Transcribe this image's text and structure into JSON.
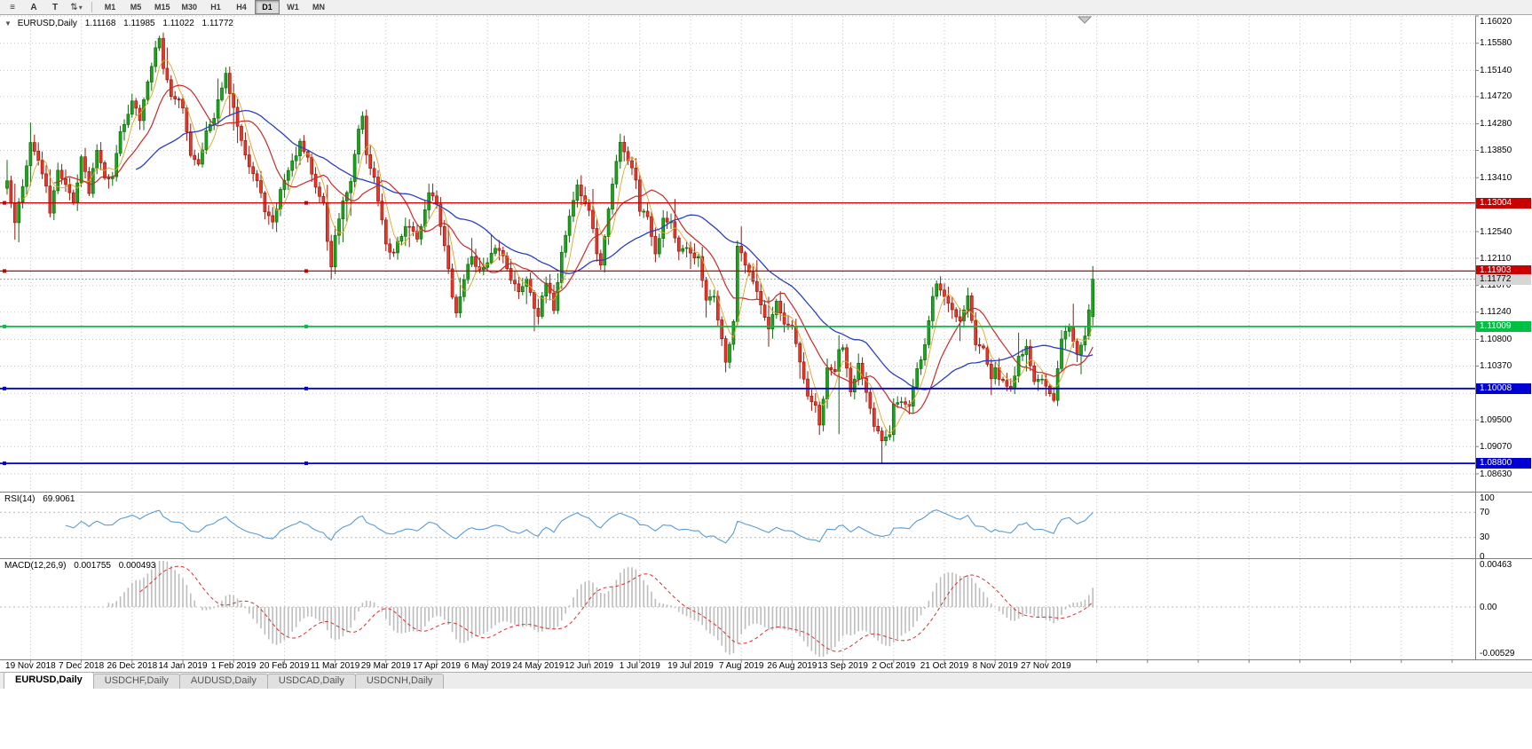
{
  "toolbar": {
    "glyphs": {
      "menu": "≡",
      "text_a": "A",
      "text_t": "T",
      "arrows": "⇅",
      "caret": "▾"
    },
    "timeframes": [
      "M1",
      "M5",
      "M15",
      "M30",
      "H1",
      "H4",
      "D1",
      "W1",
      "MN"
    ],
    "active_timeframe": "D1"
  },
  "chart": {
    "collapse_glyph": "▼",
    "title": "EURUSD,Daily",
    "open": "1.11168",
    "high": "1.11985",
    "low": "1.11022",
    "close": "1.11772",
    "price_axis_labels": [
      "1.16020",
      "1.15580",
      "1.15140",
      "1.14720",
      "1.14280",
      "1.13850",
      "1.13410",
      "1.12540",
      "1.12110",
      "1.11670",
      "1.11240",
      "1.10800",
      "1.10370",
      "1.09500",
      "1.09070",
      "1.08630"
    ],
    "levels": [
      {
        "price": "1.13004",
        "color": "#c80000",
        "width": 1.2
      },
      {
        "price": "1.11903",
        "color": "#c80000",
        "width": 1.2
      },
      {
        "price": "1.11009",
        "color": "#00c044",
        "width": 1.8
      },
      {
        "price": "1.10008",
        "color": "#0000d2",
        "width": 1.8
      },
      {
        "price": "1.08800",
        "color": "#0000d2",
        "width": 1.8
      }
    ],
    "current_price": {
      "price": "1.11772",
      "bg": "#d6d6d6",
      "fg": "#000000"
    },
    "colors": {
      "up": "#1ca51c",
      "up_border": "#0b6e0b",
      "down": "#e6392b",
      "down_border": "#9a170c",
      "ma_fast": "#cc2929",
      "ma_slow": "#2b3fc4",
      "ma_faster": "#e0a428",
      "rsi": "#5a9bd4",
      "macd_hist": "#bdbdbd",
      "macd_signal": "#d63030",
      "grid": "#c6c6c6",
      "level_red": "#c80000",
      "level_green": "#00c044",
      "level_blue": "#0000d2"
    }
  },
  "rsi": {
    "label": "RSI(14)",
    "value": "69.9061",
    "axis_labels": [
      "100",
      "70",
      "30",
      "0"
    ]
  },
  "macd": {
    "label": "MACD(12,26,9)",
    "value_main": "0.001755",
    "value_signal": "0.000493",
    "axis_labels": [
      "0.00463",
      "0.00",
      "-0.00529"
    ]
  },
  "date_axis": [
    "19 Nov 2018",
    "7 Dec 2018",
    "26 Dec 2018",
    "14 Jan 2019",
    "1 Feb 2019",
    "20 Feb 2019",
    "11 Mar 2019",
    "29 Mar 2019",
    "17 Apr 2019",
    "6 May 2019",
    "24 May 2019",
    "12 Jun 2019",
    "1 Jul 2019",
    "19 Jul 2019",
    "7 Aug 2019",
    "26 Aug 2019",
    "13 Sep 2019",
    "2 Oct 2019",
    "21 Oct 2019",
    "8 Nov 2019",
    "27 Nov 2019"
  ],
  "tabs": {
    "items": [
      "EURUSD,Daily",
      "USDCHF,Daily",
      "AUDUSD,Daily",
      "USDCAD,Daily",
      "USDCNH,Daily"
    ],
    "active": 0
  },
  "chart_data": {
    "type": "candlestick",
    "symbol": "EURUSD",
    "period": "Daily",
    "title": "EURUSD,Daily 1.11168 1.11985 1.11022 1.11772",
    "y_axis": {
      "min": 1.0863,
      "max": 1.1602
    },
    "price_grid": [
      1.1602,
      1.1558,
      1.1514,
      1.1472,
      1.1428,
      1.1385,
      1.1341,
      1.1298,
      1.1254,
      1.1211,
      1.1167,
      1.1124,
      1.108,
      1.1037,
      1.0993,
      1.095,
      1.0907,
      1.0863
    ],
    "x_tick_labels": [
      "19 Nov 2018",
      "7 Dec 2018",
      "26 Dec 2018",
      "14 Jan 2019",
      "1 Feb 2019",
      "20 Feb 2019",
      "11 Mar 2019",
      "29 Mar 2019",
      "17 Apr 2019",
      "6 May 2019",
      "24 May 2019",
      "12 Jun 2019",
      "1 Jul 2019",
      "19 Jul 2019",
      "7 Aug 2019",
      "26 Aug 2019",
      "13 Sep 2019",
      "2 Oct 2019",
      "21 Oct 2019",
      "8 Nov 2019",
      "27 Nov 2019"
    ],
    "candles_per_tick": 13,
    "last_candle": {
      "open": 1.11168,
      "high": 1.11985,
      "low": 1.11022,
      "close": 1.11772
    },
    "horizontal_levels": [
      1.13004,
      1.11903,
      1.11009,
      1.10008,
      1.088
    ],
    "current_price": 1.11772,
    "close_anchors": [
      [
        0,
        1.1335
      ],
      [
        2,
        1.1265
      ],
      [
        3,
        1.13
      ],
      [
        5,
        1.136
      ],
      [
        6,
        1.14
      ],
      [
        8,
        1.1365
      ],
      [
        10,
        1.133
      ],
      [
        11,
        1.128
      ],
      [
        13,
        1.1355
      ],
      [
        15,
        1.133
      ],
      [
        17,
        1.13
      ],
      [
        19,
        1.1375
      ],
      [
        21,
        1.132
      ],
      [
        23,
        1.139
      ],
      [
        25,
        1.1345
      ],
      [
        27,
        1.134
      ],
      [
        29,
        1.142
      ],
      [
        31,
        1.144
      ],
      [
        32,
        1.1465
      ],
      [
        34,
        1.1435
      ],
      [
        36,
        1.15
      ],
      [
        38,
        1.155
      ],
      [
        39,
        1.1565
      ],
      [
        40,
        1.152
      ],
      [
        42,
        1.1475
      ],
      [
        44,
        1.1465
      ],
      [
        45,
        1.145
      ],
      [
        47,
        1.138
      ],
      [
        49,
        1.1365
      ],
      [
        51,
        1.1415
      ],
      [
        53,
        1.1435
      ],
      [
        55,
        1.149
      ],
      [
        56,
        1.1505
      ],
      [
        58,
        1.145
      ],
      [
        60,
        1.1405
      ],
      [
        62,
        1.136
      ],
      [
        64,
        1.1335
      ],
      [
        66,
        1.129
      ],
      [
        68,
        1.1265
      ],
      [
        70,
        1.132
      ],
      [
        71,
        1.134
      ],
      [
        73,
        1.1365
      ],
      [
        75,
        1.1395
      ],
      [
        77,
        1.137
      ],
      [
        79,
        1.1325
      ],
      [
        81,
        1.13
      ],
      [
        82,
        1.124
      ],
      [
        83,
        1.1195
      ],
      [
        84,
        1.125
      ],
      [
        86,
        1.13
      ],
      [
        88,
        1.133
      ],
      [
        90,
        1.142
      ],
      [
        91,
        1.144
      ],
      [
        92,
        1.138
      ],
      [
        94,
        1.134
      ],
      [
        96,
        1.127
      ],
      [
        97,
        1.123
      ],
      [
        99,
        1.122
      ],
      [
        101,
        1.125
      ],
      [
        103,
        1.1265
      ],
      [
        105,
        1.124
      ],
      [
        107,
        1.129
      ],
      [
        108,
        1.132
      ],
      [
        110,
        1.13
      ],
      [
        112,
        1.123
      ],
      [
        114,
        1.115
      ],
      [
        115,
        1.112
      ],
      [
        117,
        1.118
      ],
      [
        119,
        1.1215
      ],
      [
        121,
        1.119
      ],
      [
        123,
        1.12
      ],
      [
        125,
        1.123
      ],
      [
        127,
        1.1215
      ],
      [
        129,
        1.118
      ],
      [
        131,
        1.1155
      ],
      [
        133,
        1.118
      ],
      [
        135,
        1.1135
      ],
      [
        136,
        1.112
      ],
      [
        138,
        1.117
      ],
      [
        140,
        1.113
      ],
      [
        142,
        1.122
      ],
      [
        144,
        1.128
      ],
      [
        146,
        1.133
      ],
      [
        147,
        1.131
      ],
      [
        149,
        1.129
      ],
      [
        151,
        1.122
      ],
      [
        152,
        1.12
      ],
      [
        154,
        1.129
      ],
      [
        156,
        1.137
      ],
      [
        157,
        1.14
      ],
      [
        159,
        1.137
      ],
      [
        161,
        1.134
      ],
      [
        162,
        1.129
      ],
      [
        164,
        1.128
      ],
      [
        166,
        1.122
      ],
      [
        168,
        1.1275
      ],
      [
        170,
        1.127
      ],
      [
        172,
        1.122
      ],
      [
        174,
        1.1225
      ],
      [
        175,
        1.122
      ],
      [
        177,
        1.121
      ],
      [
        179,
        1.114
      ],
      [
        181,
        1.115
      ],
      [
        183,
        1.108
      ],
      [
        184,
        1.104
      ],
      [
        186,
        1.111
      ],
      [
        187,
        1.123
      ],
      [
        189,
        1.12
      ],
      [
        191,
        1.117
      ],
      [
        193,
        1.114
      ],
      [
        195,
        1.11
      ],
      [
        197,
        1.114
      ],
      [
        199,
        1.11
      ],
      [
        201,
        1.11
      ],
      [
        203,
        1.104
      ],
      [
        205,
        1.099
      ],
      [
        207,
        1.097
      ],
      [
        208,
        1.094
      ],
      [
        210,
        1.103
      ],
      [
        212,
        1.103
      ],
      [
        213,
        1.106
      ],
      [
        214,
        1.107
      ],
      [
        216,
        1.1
      ],
      [
        218,
        1.104
      ],
      [
        220,
        1.099
      ],
      [
        222,
        1.094
      ],
      [
        224,
        1.092
      ],
      [
        226,
        1.093
      ],
      [
        227,
        1.098
      ],
      [
        229,
        1.098
      ],
      [
        231,
        1.097
      ],
      [
        233,
        1.103
      ],
      [
        235,
        1.107
      ],
      [
        237,
        1.115
      ],
      [
        238,
        1.117
      ],
      [
        240,
        1.115
      ],
      [
        242,
        1.113
      ],
      [
        244,
        1.111
      ],
      [
        246,
        1.115
      ],
      [
        248,
        1.107
      ],
      [
        250,
        1.107
      ],
      [
        252,
        1.102
      ],
      [
        253,
        1.103
      ],
      [
        255,
        1.101
      ],
      [
        257,
        1.1
      ],
      [
        259,
        1.105
      ],
      [
        261,
        1.107
      ],
      [
        263,
        1.101
      ],
      [
        265,
        1.102
      ],
      [
        266,
        1.1
      ],
      [
        268,
        1.098
      ],
      [
        270,
        1.108
      ],
      [
        272,
        1.11
      ],
      [
        274,
        1.106
      ],
      [
        276,
        1.109
      ],
      [
        277,
        1.113
      ],
      [
        278,
        1.11772
      ]
    ],
    "candle_overrides": [
      {
        "i": 39,
        "high": 1.157
      },
      {
        "i": 83,
        "low": 1.1177
      },
      {
        "i": 91,
        "high": 1.1448
      },
      {
        "i": 157,
        "high": 1.1412
      },
      {
        "i": 184,
        "low": 1.1027
      },
      {
        "i": 208,
        "low": 1.0926
      },
      {
        "i": 213,
        "low": 1.0927,
        "high": 1.1087
      },
      {
        "i": 224,
        "low": 1.0879
      },
      {
        "i": 278,
        "open": 1.11168,
        "high": 1.11985,
        "low": 1.11022,
        "close": 1.11772
      }
    ],
    "indicators": [
      {
        "type": "RSI",
        "period": 14,
        "last_value": 69.9061,
        "scale": [
          0,
          100
        ],
        "levels": [
          30,
          70
        ]
      },
      {
        "type": "MACD",
        "fast_ema": 12,
        "slow_ema": 26,
        "signal_sma": 9,
        "last_values": [
          0.001755,
          0.000493
        ],
        "scale": [
          -0.00529,
          0.00463
        ]
      }
    ],
    "overlays": [
      {
        "type": "SMA",
        "period": 5
      },
      {
        "type": "SMA",
        "period": 13
      },
      {
        "type": "SMA",
        "period": 34
      }
    ]
  }
}
